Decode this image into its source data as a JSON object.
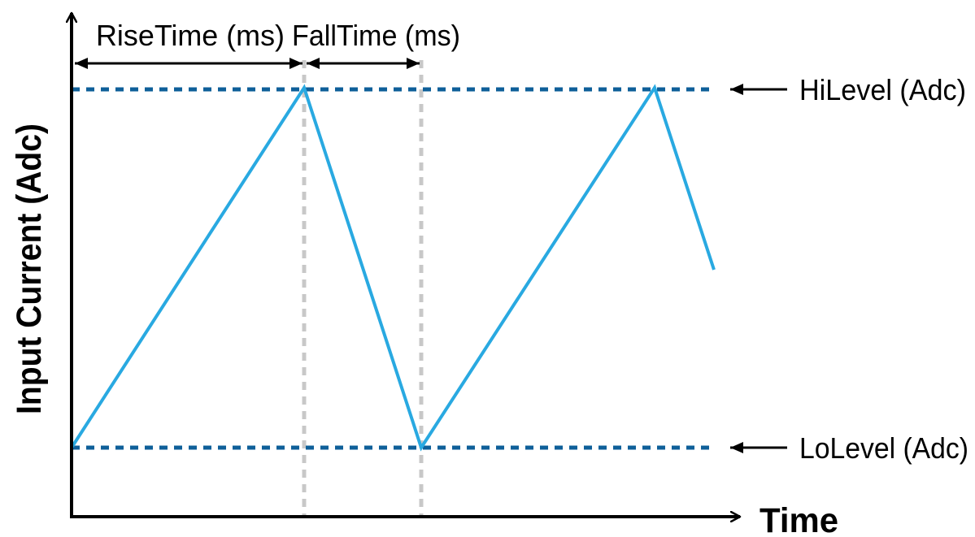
{
  "diagram": {
    "y_axis_label": "Input Current (Adc)",
    "x_axis_label": "Time",
    "rise_time_label": "RiseTime (ms)",
    "fall_time_label": "FallTime (ms)",
    "hi_level_label": "HiLevel (Adc)",
    "lo_level_label": "LoLevel (Adc)",
    "colors": {
      "waveform": "#29a9e1",
      "level_lines": "#0e5f99",
      "time_markers": "#c8c8c8",
      "axes": "#000000",
      "text": "#000000"
    }
  }
}
